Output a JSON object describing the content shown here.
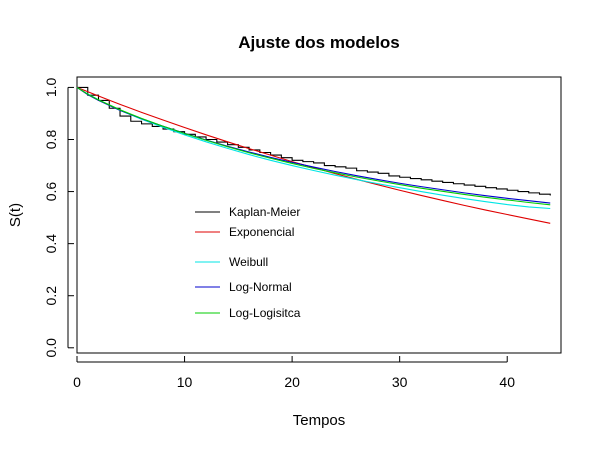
{
  "chart_data": {
    "type": "line",
    "title": "Ajuste dos modelos",
    "xlabel": "Tempos",
    "ylabel": "S(t)",
    "xlim": [
      0,
      45
    ],
    "ylim": [
      -0.02,
      1.04
    ],
    "xticks": [
      "0",
      "10",
      "20",
      "30",
      "40"
    ],
    "yticks": [
      "0.0",
      "0.2",
      "0.4",
      "0.6",
      "0.8",
      "1.0"
    ],
    "grid": false,
    "legend": {
      "placement": "center-left",
      "frame": false
    },
    "series": [
      {
        "name": "Kaplan-Meier",
        "color": "#000000",
        "step": true,
        "x": [
          0,
          1,
          2,
          3,
          4,
          5,
          6,
          7,
          8,
          9,
          10,
          11,
          12,
          13,
          14,
          15,
          16,
          17,
          18,
          19,
          20,
          21,
          22,
          23,
          24,
          25,
          26,
          27,
          28,
          29,
          30,
          31,
          32,
          33,
          34,
          35,
          36,
          37,
          38,
          39,
          40,
          41,
          42,
          43,
          44
        ],
        "y": [
          1.0,
          0.97,
          0.95,
          0.92,
          0.89,
          0.87,
          0.86,
          0.85,
          0.84,
          0.83,
          0.82,
          0.81,
          0.8,
          0.79,
          0.78,
          0.77,
          0.76,
          0.75,
          0.74,
          0.73,
          0.72,
          0.715,
          0.71,
          0.7,
          0.695,
          0.69,
          0.68,
          0.675,
          0.67,
          0.66,
          0.655,
          0.65,
          0.645,
          0.64,
          0.635,
          0.63,
          0.625,
          0.62,
          0.615,
          0.61,
          0.605,
          0.6,
          0.595,
          0.59,
          0.585
        ]
      },
      {
        "name": "Exponencial",
        "color": "#df0000",
        "step": false,
        "x": [
          0,
          2,
          4,
          6,
          8,
          10,
          12,
          14,
          16,
          18,
          20,
          22,
          24,
          26,
          28,
          30,
          32,
          34,
          36,
          38,
          40,
          42,
          44
        ],
        "y": [
          1.0,
          0.967,
          0.935,
          0.904,
          0.875,
          0.846,
          0.818,
          0.791,
          0.765,
          0.74,
          0.715,
          0.692,
          0.669,
          0.647,
          0.626,
          0.605,
          0.585,
          0.566,
          0.547,
          0.529,
          0.512,
          0.495,
          0.478
        ]
      },
      {
        "name": "Weibull",
        "color": "#00e5e5",
        "step": false,
        "x": [
          0,
          1,
          2,
          4,
          6,
          8,
          10,
          12,
          14,
          16,
          18,
          20,
          22,
          24,
          26,
          28,
          30,
          32,
          34,
          36,
          38,
          40,
          42,
          44
        ],
        "y": [
          1.0,
          0.975,
          0.952,
          0.912,
          0.878,
          0.847,
          0.818,
          0.791,
          0.766,
          0.742,
          0.72,
          0.7,
          0.681,
          0.663,
          0.646,
          0.63,
          0.615,
          0.6,
          0.586,
          0.573,
          0.561,
          0.55,
          0.541,
          0.535
        ]
      },
      {
        "name": "Log-Normal",
        "color": "#0000cd",
        "step": false,
        "x": [
          0,
          1,
          2,
          4,
          6,
          8,
          10,
          12,
          14,
          16,
          18,
          20,
          22,
          24,
          26,
          28,
          30,
          32,
          34,
          36,
          38,
          40,
          42,
          44
        ],
        "y": [
          1.0,
          0.972,
          0.95,
          0.912,
          0.88,
          0.851,
          0.824,
          0.798,
          0.774,
          0.752,
          0.731,
          0.712,
          0.694,
          0.677,
          0.661,
          0.646,
          0.632,
          0.619,
          0.607,
          0.595,
          0.584,
          0.574,
          0.565,
          0.556
        ]
      },
      {
        "name": "Log-Logisitca",
        "color": "#00cd00",
        "step": false,
        "x": [
          0,
          1,
          2,
          4,
          6,
          8,
          10,
          12,
          14,
          16,
          18,
          20,
          22,
          24,
          26,
          28,
          30,
          32,
          34,
          36,
          38,
          40,
          42,
          44
        ],
        "y": [
          1.0,
          0.974,
          0.952,
          0.914,
          0.881,
          0.851,
          0.823,
          0.797,
          0.772,
          0.749,
          0.728,
          0.708,
          0.689,
          0.672,
          0.656,
          0.641,
          0.627,
          0.613,
          0.601,
          0.589,
          0.578,
          0.568,
          0.558,
          0.549
        ]
      }
    ]
  }
}
